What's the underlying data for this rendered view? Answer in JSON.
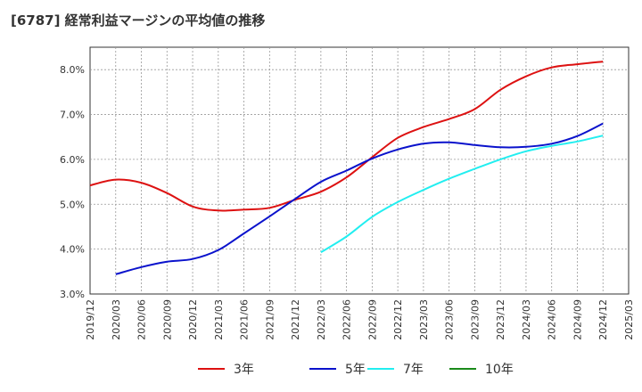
{
  "title": "[6787]  経常利益マージンの平均値の推移",
  "chart_data": {
    "type": "line",
    "title": "[6787]  経常利益マージンの平均値の推移",
    "xlabel": "",
    "ylabel": "",
    "x_ticks": [
      "2019/12",
      "2020/03",
      "2020/06",
      "2020/09",
      "2020/12",
      "2021/03",
      "2021/06",
      "2021/09",
      "2021/12",
      "2022/03",
      "2022/06",
      "2022/09",
      "2022/12",
      "2023/03",
      "2023/06",
      "2023/09",
      "2023/12",
      "2024/03",
      "2024/06",
      "2024/09",
      "2024/12",
      "2025/03"
    ],
    "y_ticks": [
      "3.0%",
      "4.0%",
      "5.0%",
      "6.0%",
      "7.0%",
      "8.0%"
    ],
    "ylim": [
      3.0,
      8.5
    ],
    "grid": true,
    "legend_position": "bottom",
    "series": [
      {
        "name": "3年",
        "color": "#dd1111",
        "points": [
          [
            "2019/12",
            5.42
          ],
          [
            "2020/03",
            5.55
          ],
          [
            "2020/06",
            5.48
          ],
          [
            "2020/09",
            5.25
          ],
          [
            "2020/12",
            4.95
          ],
          [
            "2021/03",
            4.86
          ],
          [
            "2021/06",
            4.88
          ],
          [
            "2021/09",
            4.92
          ],
          [
            "2021/12",
            5.1
          ],
          [
            "2022/03",
            5.28
          ],
          [
            "2022/06",
            5.6
          ],
          [
            "2022/09",
            6.05
          ],
          [
            "2022/12",
            6.48
          ],
          [
            "2023/03",
            6.72
          ],
          [
            "2023/06",
            6.9
          ],
          [
            "2023/09",
            7.12
          ],
          [
            "2023/12",
            7.55
          ],
          [
            "2024/03",
            7.85
          ],
          [
            "2024/06",
            8.05
          ],
          [
            "2024/09",
            8.12
          ],
          [
            "2024/12",
            8.18
          ]
        ]
      },
      {
        "name": "5年",
        "color": "#0a12cc",
        "points": [
          [
            "2020/03",
            3.44
          ],
          [
            "2020/06",
            3.6
          ],
          [
            "2020/09",
            3.72
          ],
          [
            "2020/12",
            3.78
          ],
          [
            "2021/03",
            3.98
          ],
          [
            "2021/06",
            4.35
          ],
          [
            "2021/09",
            4.73
          ],
          [
            "2021/12",
            5.12
          ],
          [
            "2022/03",
            5.5
          ],
          [
            "2022/06",
            5.75
          ],
          [
            "2022/09",
            6.02
          ],
          [
            "2022/12",
            6.22
          ],
          [
            "2023/03",
            6.35
          ],
          [
            "2023/06",
            6.38
          ],
          [
            "2023/09",
            6.32
          ],
          [
            "2023/12",
            6.27
          ],
          [
            "2024/03",
            6.28
          ],
          [
            "2024/06",
            6.35
          ],
          [
            "2024/09",
            6.52
          ],
          [
            "2024/12",
            6.8
          ]
        ]
      },
      {
        "name": "7年",
        "color": "#22eef0",
        "points": [
          [
            "2022/03",
            3.93
          ],
          [
            "2022/06",
            4.28
          ],
          [
            "2022/09",
            4.72
          ],
          [
            "2022/12",
            5.05
          ],
          [
            "2023/03",
            5.32
          ],
          [
            "2023/06",
            5.57
          ],
          [
            "2023/09",
            5.79
          ],
          [
            "2023/12",
            6.0
          ],
          [
            "2024/03",
            6.18
          ],
          [
            "2024/06",
            6.3
          ],
          [
            "2024/09",
            6.4
          ],
          [
            "2024/12",
            6.53
          ]
        ]
      },
      {
        "name": "10年",
        "color": "#1a8a1a",
        "points": []
      }
    ]
  }
}
